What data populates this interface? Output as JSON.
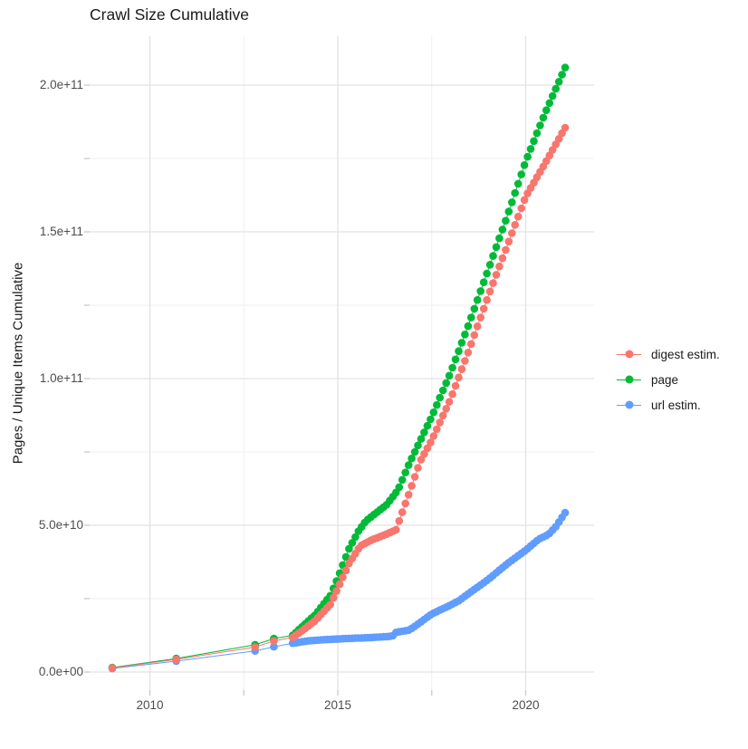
{
  "chart_data": {
    "type": "scatter-line",
    "title": "Crawl Size Cumulative",
    "legend_position": "right",
    "grid": true,
    "x_axis": {
      "range_years": [
        2008.4,
        2021.75
      ],
      "ticks": [
        {
          "year": 2010,
          "label": "2010"
        },
        {
          "year": 2015,
          "label": "2015"
        },
        {
          "year": 2020,
          "label": "2020"
        }
      ],
      "minor_ticks_years": [
        2012.5,
        2017.5
      ]
    },
    "y_axis": {
      "title": "Pages / Unique Items Cumulative",
      "note": "values stored in billions (1e9 items)",
      "range_e9": [
        -6,
        215
      ],
      "ticks": [
        {
          "value_e9": 0,
          "label": "0.0e+00"
        },
        {
          "value_e9": 50,
          "label": "5.0e+10"
        },
        {
          "value_e9": 100,
          "label": "1.0e+11"
        },
        {
          "value_e9": 150,
          "label": "1.5e+11"
        },
        {
          "value_e9": 200,
          "label": "2.0e+11"
        }
      ],
      "minor_ticks_e9": [
        25,
        75,
        125,
        175
      ]
    },
    "dense_points": {
      "start_year": 2013.8,
      "end_year": 2021.05,
      "points_per_year": 12
    },
    "series": [
      {
        "name": "digest estim.",
        "color": "#F8766D",
        "early_points": [
          [
            2009.0,
            1.4
          ],
          [
            2010.7,
            4.3
          ],
          [
            2012.8,
            8.5
          ],
          [
            2013.3,
            10.6
          ]
        ],
        "anchors": [
          [
            2013.8,
            11.8
          ],
          [
            2014.1,
            14.5
          ],
          [
            2014.4,
            17.5
          ],
          [
            2014.8,
            23.0
          ],
          [
            2015.0,
            28.5
          ],
          [
            2015.3,
            37.0
          ],
          [
            2015.6,
            43.0
          ],
          [
            2015.9,
            45.0
          ],
          [
            2016.3,
            47.0
          ],
          [
            2016.55,
            48.5
          ],
          [
            2016.9,
            61.0
          ],
          [
            2017.2,
            72.0
          ],
          [
            2017.5,
            79.0
          ],
          [
            2018.0,
            93.0
          ],
          [
            2018.5,
            110.0
          ],
          [
            2019.0,
            128.0
          ],
          [
            2019.5,
            145.0
          ],
          [
            2020.0,
            162.0
          ],
          [
            2020.5,
            173.0
          ],
          [
            2021.05,
            185.5
          ]
        ]
      },
      {
        "name": "page",
        "color": "#00BA38",
        "early_points": [
          [
            2009.0,
            1.5
          ],
          [
            2010.7,
            4.6
          ],
          [
            2012.8,
            9.3
          ],
          [
            2013.3,
            11.4
          ]
        ],
        "anchors": [
          [
            2013.8,
            12.5
          ],
          [
            2014.1,
            16.0
          ],
          [
            2014.4,
            19.5
          ],
          [
            2014.8,
            26.0
          ],
          [
            2015.0,
            32.0
          ],
          [
            2015.3,
            42.0
          ],
          [
            2015.55,
            48.0
          ],
          [
            2015.75,
            51.5
          ],
          [
            2016.3,
            57.0
          ],
          [
            2016.6,
            62.0
          ],
          [
            2016.9,
            71.0
          ],
          [
            2017.2,
            79.0
          ],
          [
            2017.5,
            87.0
          ],
          [
            2018.0,
            102.0
          ],
          [
            2018.5,
            119.0
          ],
          [
            2019.0,
            137.0
          ],
          [
            2019.5,
            155.0
          ],
          [
            2020.0,
            174.0
          ],
          [
            2020.5,
            190.0
          ],
          [
            2021.05,
            206.0
          ]
        ]
      },
      {
        "name": "url estim.",
        "color": "#619CFF",
        "early_points": [
          [
            2009.0,
            1.2
          ],
          [
            2010.7,
            3.7
          ],
          [
            2012.8,
            7.2
          ],
          [
            2013.3,
            8.6
          ]
        ],
        "anchors": [
          [
            2013.8,
            9.8
          ],
          [
            2014.2,
            10.6
          ],
          [
            2014.6,
            11.0
          ],
          [
            2015.2,
            11.4
          ],
          [
            2015.8,
            11.7
          ],
          [
            2016.2,
            12.0
          ],
          [
            2016.45,
            12.2
          ],
          [
            2016.55,
            13.5
          ],
          [
            2016.9,
            14.3
          ],
          [
            2017.1,
            16.0
          ],
          [
            2017.5,
            19.8
          ],
          [
            2018.0,
            22.8
          ],
          [
            2018.25,
            24.5
          ],
          [
            2018.4,
            26.0
          ],
          [
            2019.0,
            31.5
          ],
          [
            2019.5,
            36.8
          ],
          [
            2020.0,
            41.5
          ],
          [
            2020.35,
            45.3
          ],
          [
            2020.6,
            46.8
          ],
          [
            2020.8,
            49.5
          ],
          [
            2021.05,
            54.3
          ]
        ]
      }
    ],
    "style": {
      "grid_major_color": "#E2E2E2",
      "grid_minor_color": "#EFEFEF",
      "tick_mark_color": "#c9c9c9",
      "axis_text_color": "#4d4d4d",
      "text_color": "#1a1a1a",
      "marker_radius_px": 4.3
    }
  }
}
